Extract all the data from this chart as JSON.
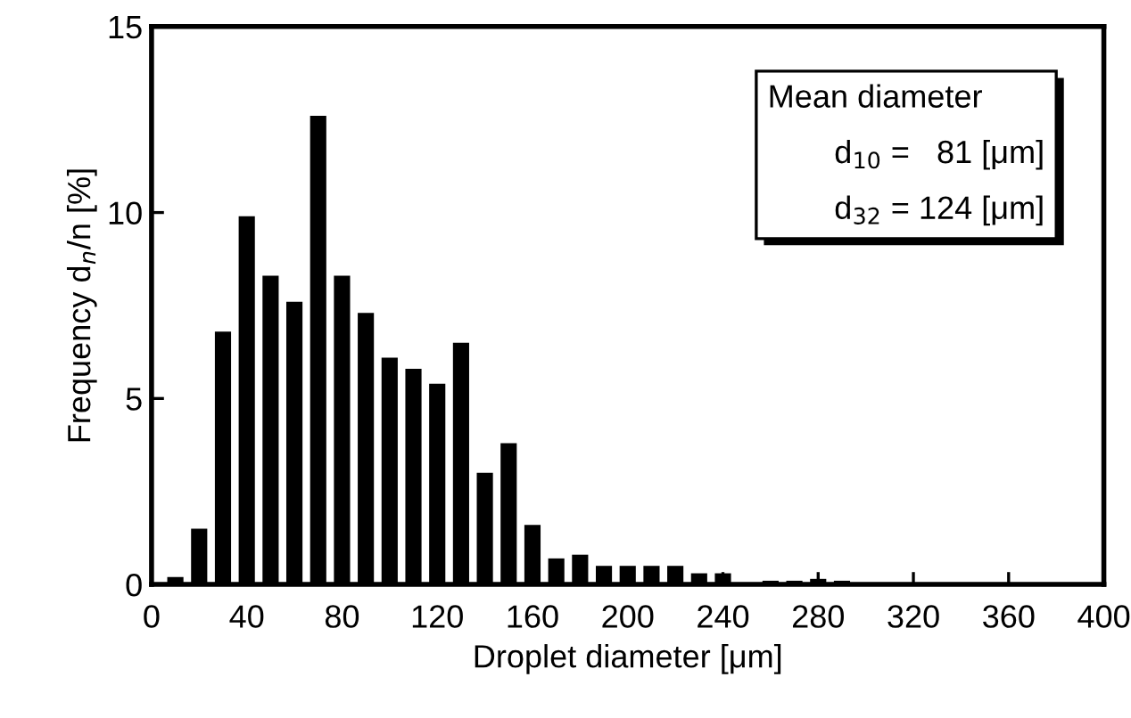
{
  "chart_data": {
    "type": "histogram",
    "xlabel": "Droplet diameter [μm]",
    "ylabel": "Frequency d$_{n}$/n [%]",
    "bins": [
      5,
      15,
      25,
      35,
      45,
      55,
      65,
      75,
      85,
      95,
      105,
      115,
      125,
      135,
      145,
      155,
      165,
      175,
      185,
      195,
      205,
      215,
      225,
      235,
      245,
      255,
      265,
      275,
      285,
      295
    ],
    "values": [
      0.2,
      1.5,
      6.8,
      9.9,
      8.3,
      7.6,
      12.6,
      8.3,
      7.3,
      6.1,
      5.8,
      5.4,
      6.5,
      3.0,
      3.8,
      1.6,
      0.7,
      0.8,
      0.5,
      0.5,
      0.5,
      0.5,
      0.3,
      0.3,
      0,
      0.1,
      0.1,
      0.15,
      0.1
    ],
    "color": "#000000",
    "xlim": [
      0,
      400
    ],
    "xticks": [
      0,
      40,
      80,
      120,
      160,
      200,
      240,
      280,
      320,
      360,
      400
    ],
    "ylim": [
      0,
      15
    ],
    "yticks": [
      0,
      5,
      10,
      15
    ],
    "grid": false,
    "legend": false,
    "annotations": [
      "Mean diameter",
      "d$_{10}$ =   81 [μm]",
      "d$_{32}$ = 124 [μm]"
    ]
  }
}
